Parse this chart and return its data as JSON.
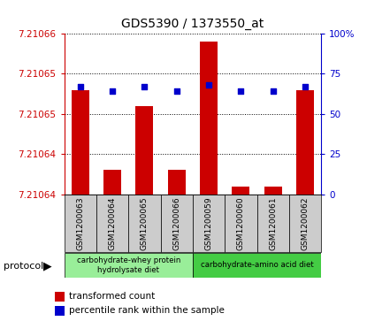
{
  "title": "GDS5390 / 1373550_at",
  "samples": [
    "GSM1200063",
    "GSM1200064",
    "GSM1200065",
    "GSM1200066",
    "GSM1200059",
    "GSM1200060",
    "GSM1200061",
    "GSM1200062"
  ],
  "bar_values": [
    7.210653,
    7.210643,
    7.210651,
    7.210643,
    7.210659,
    7.210641,
    7.210641,
    7.210653
  ],
  "percentile_values": [
    67,
    64,
    67,
    64,
    68,
    64,
    64,
    67
  ],
  "y_min": 7.21064,
  "y_max": 7.21066,
  "y_ticks": [
    7.21064,
    7.210645,
    7.21065,
    7.210655,
    7.21066
  ],
  "y_tick_labels": [
    "7.21064",
    "7.21064",
    "7.21065",
    "7.21065",
    "7.21066"
  ],
  "right_y_ticks": [
    0,
    25,
    50,
    75,
    100
  ],
  "right_y_tick_labels": [
    "0",
    "25",
    "50",
    "75",
    "100%"
  ],
  "bar_color": "#cc0000",
  "dot_color": "#0000cc",
  "group1_color": "#99ee99",
  "group2_color": "#44cc44",
  "group1_label": "carbohydrate-whey protein\nhydrolysate diet",
  "group2_label": "carbohydrate-amino acid diet",
  "legend_bar_label": "transformed count",
  "legend_dot_label": "percentile rank within the sample",
  "protocol_label": "protocol",
  "bar_baseline": 7.21064,
  "sample_box_color": "#cccccc",
  "spine_color": "#000000"
}
